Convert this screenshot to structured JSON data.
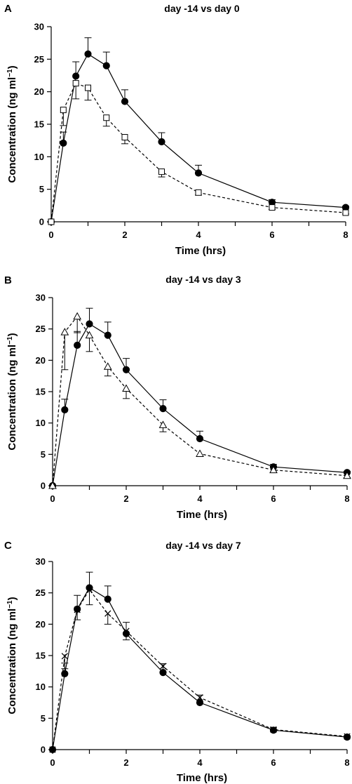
{
  "chart_data": [
    {
      "type": "line",
      "panel": "A",
      "title": "day -14 vs day 0",
      "xlabel": "Time (hrs)",
      "ylabel": "Concentration (ng ml",
      "ylabel_sup": "−1",
      "ylabel_close": ")",
      "xlim": [
        0,
        8
      ],
      "ylim": [
        0,
        30
      ],
      "xticks": [
        0,
        2,
        4,
        6,
        8
      ],
      "yticks": [
        0,
        5,
        10,
        15,
        20,
        25,
        30
      ],
      "grid": false,
      "series": [
        {
          "marker": "filled-circle",
          "line": "solid",
          "x": [
            0,
            0.33,
            0.67,
            1,
            1.5,
            2,
            3,
            4,
            6,
            8
          ],
          "y": [
            0,
            12.1,
            22.4,
            25.8,
            24.0,
            18.5,
            12.3,
            7.5,
            3.0,
            2.2
          ],
          "err": [
            0,
            1.7,
            2.2,
            2.5,
            2.1,
            1.8,
            1.4,
            1.2,
            0.4,
            0.2
          ]
        },
        {
          "marker": "open-square",
          "line": "dashed",
          "x": [
            0,
            0.33,
            0.67,
            1,
            1.5,
            2,
            3,
            4,
            6,
            8
          ],
          "y": [
            0,
            17.2,
            21.3,
            20.6,
            16.0,
            13.0,
            7.7,
            4.5,
            2.2,
            1.4
          ],
          "err": [
            0,
            2.4,
            2.4,
            1.9,
            1.3,
            1.0,
            0.8,
            0.4,
            0.3,
            0.2
          ]
        }
      ]
    },
    {
      "type": "line",
      "panel": "B",
      "title": "day -14 vs day 3",
      "xlabel": "Time (hrs)",
      "ylabel": "Concentration (ng ml",
      "ylabel_sup": "−1",
      "ylabel_close": ")",
      "xlim": [
        0,
        8
      ],
      "ylim": [
        0,
        30
      ],
      "xticks": [
        0,
        2,
        4,
        6,
        8
      ],
      "yticks": [
        0,
        5,
        10,
        15,
        20,
        25,
        30
      ],
      "grid": false,
      "series": [
        {
          "marker": "filled-circle",
          "line": "solid",
          "x": [
            0,
            0.33,
            0.67,
            1,
            1.5,
            2,
            3,
            4,
            6,
            8
          ],
          "y": [
            0,
            12.1,
            22.4,
            25.8,
            24.0,
            18.5,
            12.3,
            7.5,
            3.0,
            2.1
          ],
          "err": [
            0,
            1.7,
            2.2,
            2.5,
            2.1,
            1.8,
            1.4,
            1.2,
            0.4,
            0.2
          ]
        },
        {
          "marker": "open-triangle",
          "line": "dashed",
          "x": [
            0,
            0.33,
            0.67,
            1,
            1.5,
            2,
            3,
            4,
            6,
            8
          ],
          "y": [
            0,
            24.5,
            27.0,
            24.0,
            19.0,
            15.5,
            9.7,
            5.1,
            2.5,
            1.6
          ],
          "err": [
            0,
            6.0,
            2.6,
            2.6,
            1.5,
            1.6,
            1.1,
            0.4,
            0.3,
            0.3
          ]
        }
      ]
    },
    {
      "type": "line",
      "panel": "C",
      "title": "day -14 vs day 7",
      "xlabel": "Time (hrs)",
      "ylabel": "Concentration (ng ml",
      "ylabel_sup": "−1",
      "ylabel_close": ")",
      "xlim": [
        0,
        8
      ],
      "ylim": [
        0,
        30
      ],
      "xticks": [
        0,
        2,
        4,
        6,
        8
      ],
      "yticks": [
        0,
        5,
        10,
        15,
        20,
        25,
        30
      ],
      "grid": false,
      "series": [
        {
          "marker": "filled-circle",
          "line": "solid",
          "x": [
            0,
            0.33,
            0.67,
            1,
            1.5,
            2,
            3,
            4,
            6,
            8
          ],
          "y": [
            0,
            12.1,
            22.4,
            25.8,
            24.0,
            18.5,
            12.3,
            7.5,
            3.1,
            2.0
          ],
          "err": [
            0,
            1.7,
            2.2,
            2.5,
            2.1,
            1.8,
            1.4,
            1.2,
            0.4,
            0.2
          ]
        },
        {
          "marker": "cross",
          "line": "dashed",
          "x": [
            0,
            0.33,
            0.67,
            1,
            1.5,
            2,
            3,
            4,
            6,
            8
          ],
          "y": [
            0,
            14.9,
            22.3,
            25.5,
            21.7,
            18.9,
            13.3,
            8.3,
            3.2,
            2.1
          ],
          "err": [
            0,
            2.0,
            1.6,
            2.4,
            1.7,
            1.4,
            0.9,
            0.7,
            0.3,
            0.2
          ]
        }
      ]
    }
  ]
}
